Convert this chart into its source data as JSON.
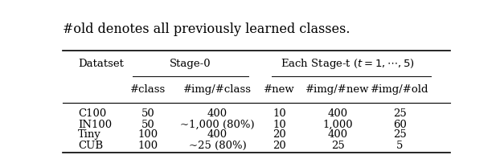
{
  "caption": "#old denotes all previously learned classes.",
  "group_header1": "Datatset",
  "group_header2": "Stage-0",
  "group_header3": "Each Stage-t ($t = 1, \\cdots, 5$)",
  "sub_headers": [
    "#class",
    "#img/#class",
    "#new",
    "#img/#new",
    "#img/#old"
  ],
  "rows": [
    [
      "C100",
      "50",
      "400",
      "10",
      "400",
      "25"
    ],
    [
      "IN100",
      "50",
      "~1,000 (80%)",
      "10",
      "1,000",
      "60"
    ],
    [
      "Tiny",
      "100",
      "400",
      "20",
      "400",
      "25"
    ],
    [
      "CUB",
      "100",
      "~25 (80%)",
      "20",
      "25",
      "5"
    ]
  ],
  "figsize": [
    6.22,
    1.98
  ],
  "dpi": 100
}
